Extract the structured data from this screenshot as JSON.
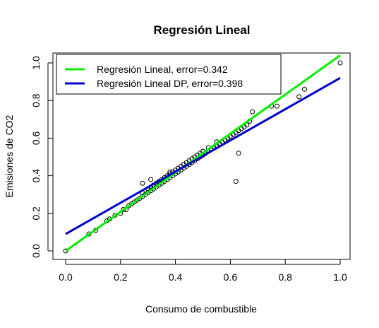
{
  "chart_data": {
    "type": "scatter",
    "title": "Regresión Lineal",
    "xlabel": "Consumo de combustible",
    "ylabel": "Emisiones de CO2",
    "xlim": [
      0,
      1
    ],
    "ylim": [
      0,
      1
    ],
    "x_ticks": [
      "0.0",
      "0.2",
      "0.4",
      "0.6",
      "0.8",
      "1.0"
    ],
    "y_ticks": [
      "0.0",
      "0.2",
      "0.4",
      "0.6",
      "0.8",
      "1.0"
    ],
    "grid": false,
    "legend_position": "top-left",
    "legend": [
      "Regresión Lineal, error=0.342",
      "Regresión Lineal DP, error=0.398"
    ],
    "lines": [
      {
        "label_index": 0,
        "color": "#00ee00",
        "x": [
          0,
          1.0
        ],
        "y": [
          0.0,
          1.04
        ]
      },
      {
        "label_index": 1,
        "color": "#0000cc",
        "x": [
          0,
          1.0
        ],
        "y": [
          0.09,
          0.92
        ]
      }
    ],
    "points": {
      "marker": "open-circle",
      "color": "#000000",
      "x": [
        0.0,
        0.085,
        0.11,
        0.15,
        0.16,
        0.18,
        0.2,
        0.21,
        0.22,
        0.23,
        0.24,
        0.25,
        0.26,
        0.27,
        0.28,
        0.28,
        0.29,
        0.3,
        0.3,
        0.31,
        0.31,
        0.32,
        0.32,
        0.33,
        0.33,
        0.34,
        0.34,
        0.35,
        0.35,
        0.36,
        0.36,
        0.37,
        0.37,
        0.38,
        0.38,
        0.39,
        0.39,
        0.4,
        0.4,
        0.41,
        0.41,
        0.42,
        0.42,
        0.43,
        0.43,
        0.44,
        0.44,
        0.45,
        0.45,
        0.46,
        0.46,
        0.47,
        0.47,
        0.48,
        0.48,
        0.49,
        0.49,
        0.5,
        0.5,
        0.51,
        0.52,
        0.52,
        0.53,
        0.54,
        0.55,
        0.55,
        0.56,
        0.57,
        0.58,
        0.59,
        0.6,
        0.61,
        0.62,
        0.63,
        0.64,
        0.65,
        0.66,
        0.67,
        0.68,
        0.62,
        0.63,
        0.75,
        0.77,
        0.85,
        0.87,
        1.0,
        0.31,
        0.38,
        0.28
      ],
      "y": [
        0.0,
        0.09,
        0.11,
        0.16,
        0.17,
        0.19,
        0.2,
        0.22,
        0.22,
        0.24,
        0.25,
        0.26,
        0.27,
        0.28,
        0.29,
        0.31,
        0.3,
        0.31,
        0.33,
        0.32,
        0.34,
        0.33,
        0.35,
        0.34,
        0.36,
        0.35,
        0.37,
        0.36,
        0.38,
        0.37,
        0.39,
        0.38,
        0.4,
        0.39,
        0.41,
        0.4,
        0.42,
        0.41,
        0.43,
        0.42,
        0.44,
        0.43,
        0.45,
        0.44,
        0.46,
        0.45,
        0.47,
        0.46,
        0.48,
        0.47,
        0.49,
        0.48,
        0.5,
        0.49,
        0.51,
        0.5,
        0.52,
        0.51,
        0.53,
        0.52,
        0.53,
        0.55,
        0.54,
        0.55,
        0.56,
        0.58,
        0.57,
        0.58,
        0.59,
        0.6,
        0.61,
        0.62,
        0.63,
        0.64,
        0.65,
        0.66,
        0.67,
        0.69,
        0.74,
        0.37,
        0.52,
        0.77,
        0.77,
        0.82,
        0.86,
        1.0,
        0.38,
        0.42,
        0.36
      ]
    }
  }
}
